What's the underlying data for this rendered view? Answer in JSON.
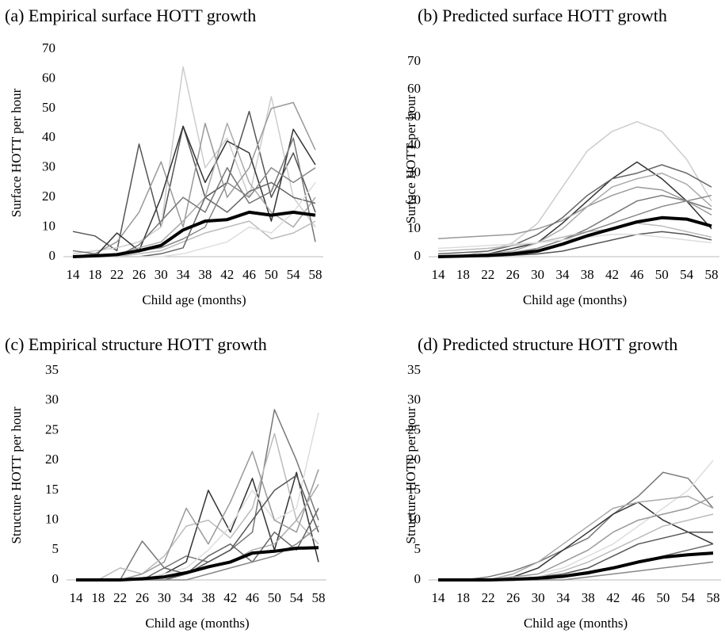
{
  "chart_data": [
    {
      "type": "line",
      "title": "(a) Empirical  surface HOTT growth",
      "x_label": "Child age (months)",
      "y_label": "Surface HOTT per hour",
      "categories": [
        "14",
        "18",
        "22",
        "26",
        "30",
        "34",
        "38",
        "42",
        "46",
        "50",
        "54",
        "58"
      ],
      "ylim": [
        0,
        70
      ],
      "yticks": [
        0,
        10,
        20,
        30,
        40,
        50,
        60,
        70
      ],
      "series": [
        {
          "color": "#555555",
          "values": [
            8.5,
            7,
            2,
            38,
            10,
            44,
            20,
            25,
            49,
            20,
            35,
            15
          ]
        },
        {
          "color": "#cccccc",
          "values": [
            1,
            2,
            3,
            5,
            10,
            64,
            30,
            40,
            20,
            54,
            20,
            10
          ]
        },
        {
          "color": "#999999",
          "values": [
            0,
            1,
            5,
            15,
            32,
            10,
            45,
            20,
            30,
            50,
            52,
            36
          ]
        },
        {
          "color": "#333333",
          "values": [
            0,
            0,
            8,
            2,
            20,
            44,
            25,
            39,
            35,
            12,
            43,
            31
          ]
        },
        {
          "color": "#aaaaaa",
          "values": [
            0,
            0,
            1,
            3,
            5,
            12,
            20,
            45,
            25,
            15,
            10,
            20
          ]
        },
        {
          "color": "#777777",
          "values": [
            2,
            1,
            0,
            4,
            12,
            20,
            15,
            30,
            18,
            22,
            40,
            5
          ]
        },
        {
          "color": "#bbbbbb",
          "values": [
            0,
            0,
            0,
            1,
            2,
            5,
            8,
            10,
            12,
            6,
            8,
            12
          ]
        },
        {
          "color": "#666666",
          "values": [
            0,
            0,
            0,
            0,
            1,
            3,
            20,
            15,
            22,
            25,
            20,
            18
          ]
        },
        {
          "color": "#dddddd",
          "values": [
            0,
            0,
            0,
            0,
            0,
            1,
            3,
            5,
            10,
            8,
            15,
            25
          ]
        },
        {
          "color": "#888888",
          "values": [
            0,
            0,
            1,
            2,
            3,
            6,
            10,
            25,
            20,
            30,
            25,
            30
          ]
        },
        {
          "color": "#000000",
          "line_width": 4,
          "values": [
            0,
            0.3,
            0.7,
            2,
            3.8,
            9,
            12,
            12.5,
            15,
            14,
            15,
            14
          ]
        }
      ]
    },
    {
      "type": "line",
      "title": "(b) Predicted surface HOTT growth",
      "x_label": "Child age (months)",
      "y_label": "Surface HOTT per hour",
      "categories": [
        "14",
        "18",
        "22",
        "26",
        "30",
        "34",
        "38",
        "42",
        "46",
        "50",
        "54",
        "58"
      ],
      "ylim": [
        0,
        70
      ],
      "yticks": [
        0,
        10,
        20,
        30,
        40,
        50,
        60,
        70
      ],
      "series": [
        {
          "color": "#cccccc",
          "values": [
            0,
            0.5,
            2,
            5,
            12,
            25,
            38,
            45,
            48.5,
            45,
            35,
            20
          ]
        },
        {
          "color": "#333333",
          "values": [
            0,
            0.5,
            1,
            3,
            5,
            12,
            20,
            28,
            34,
            28,
            20,
            10
          ]
        },
        {
          "color": "#999999",
          "values": [
            6.5,
            7,
            7.5,
            8,
            10,
            13,
            18,
            22,
            25,
            24,
            20,
            15
          ]
        },
        {
          "color": "#666666",
          "values": [
            1,
            1.5,
            2,
            4,
            8,
            14,
            22,
            28,
            30,
            33,
            30,
            25
          ]
        },
        {
          "color": "#aaaaaa",
          "values": [
            0,
            0.5,
            1,
            2,
            5,
            10,
            18,
            25,
            28,
            30,
            26,
            18
          ]
        },
        {
          "color": "#777777",
          "values": [
            0,
            0,
            0.5,
            1,
            3,
            6,
            10,
            15,
            20,
            22,
            20,
            17
          ]
        },
        {
          "color": "#bbbbbb",
          "values": [
            2,
            2.5,
            3,
            4,
            5,
            7,
            9,
            10,
            12,
            11,
            9,
            7
          ]
        },
        {
          "color": "#555555",
          "values": [
            0,
            0,
            0,
            0.5,
            1,
            2,
            4,
            6,
            8,
            9,
            8,
            6
          ]
        },
        {
          "color": "#888888",
          "values": [
            0,
            0,
            0.5,
            1.5,
            3,
            6,
            9,
            12,
            15,
            18,
            20,
            22
          ]
        },
        {
          "color": "#dddddd",
          "values": [
            3,
            3.5,
            4,
            4.5,
            5,
            6,
            7,
            8,
            8,
            7,
            6,
            5
          ]
        },
        {
          "color": "#000000",
          "line_width": 4,
          "values": [
            0,
            0.2,
            0.5,
            1,
            2,
            4.5,
            7.5,
            10,
            12.5,
            14,
            13.5,
            11
          ]
        }
      ]
    },
    {
      "type": "line",
      "title": "(c) Empirical  structure HOTT growth",
      "x_label": "Child age (months)",
      "y_label": "Structure  HOTT per hour",
      "categories": [
        "14",
        "18",
        "22",
        "26",
        "30",
        "34",
        "38",
        "42",
        "46",
        "50",
        "54",
        "58"
      ],
      "ylim": [
        0,
        35
      ],
      "yticks": [
        0,
        5,
        10,
        15,
        20,
        25,
        30,
        35
      ],
      "series": [
        {
          "color": "#777777",
          "values": [
            0,
            0,
            0,
            6.5,
            2,
            4,
            3,
            5,
            8,
            28.5,
            20,
            10
          ]
        },
        {
          "color": "#333333",
          "values": [
            0,
            0,
            0,
            0,
            1,
            3,
            15,
            8,
            17,
            5,
            18,
            3
          ]
        },
        {
          "color": "#bbbbbb",
          "values": [
            0,
            0,
            2,
            1,
            4,
            9,
            10,
            7,
            12,
            24.5,
            10,
            6
          ]
        },
        {
          "color": "#dddddd",
          "values": [
            0,
            0,
            0,
            0,
            1,
            2,
            5,
            9,
            15,
            10,
            12,
            28
          ]
        },
        {
          "color": "#999999",
          "values": [
            0,
            0,
            0,
            1,
            3,
            12,
            6,
            13,
            21.5,
            10,
            8,
            18.5
          ]
        },
        {
          "color": "#555555",
          "values": [
            0,
            0,
            0,
            0,
            0,
            1,
            3,
            5,
            10,
            15,
            17.5,
            8
          ]
        },
        {
          "color": "#aaaaaa",
          "values": [
            0,
            0,
            0,
            0,
            0.5,
            1,
            2,
            3,
            5,
            6,
            10,
            16
          ]
        },
        {
          "color": "#666666",
          "values": [
            0,
            0,
            0,
            0,
            2,
            1,
            4,
            6,
            3,
            8,
            5,
            12
          ]
        },
        {
          "color": "#888888",
          "values": [
            0,
            0,
            0,
            0,
            0,
            0,
            1,
            2,
            3,
            4,
            6,
            9
          ]
        },
        {
          "color": "#000000",
          "line_width": 4,
          "values": [
            0,
            0,
            0,
            0.2,
            0.5,
            1.2,
            2.2,
            3,
            4.5,
            4.8,
            5.3,
            5.4
          ]
        }
      ]
    },
    {
      "type": "line",
      "title": "(d) Predicted structure HOTT growth",
      "x_label": "Child age (months)",
      "y_label": "Structure HOTT per hour",
      "categories": [
        "14",
        "18",
        "22",
        "26",
        "30",
        "34",
        "38",
        "42",
        "46",
        "50",
        "54",
        "58"
      ],
      "ylim": [
        0,
        35
      ],
      "yticks": [
        0,
        5,
        10,
        15,
        20,
        25,
        30,
        35
      ],
      "series": [
        {
          "color": "#777777",
          "values": [
            0,
            0,
            0.5,
            1.5,
            3,
            5,
            7,
            11,
            14,
            18,
            17,
            12
          ]
        },
        {
          "color": "#333333",
          "values": [
            0,
            0,
            0,
            0.5,
            2,
            5,
            8,
            11,
            13,
            10,
            8,
            6
          ]
        },
        {
          "color": "#dddddd",
          "values": [
            0,
            0,
            0,
            0.5,
            1,
            2,
            4,
            6,
            9,
            12,
            15,
            20
          ]
        },
        {
          "color": "#aaaaaa",
          "values": [
            0,
            0,
            0,
            1,
            3,
            6,
            9,
            12,
            13,
            13.5,
            14,
            12
          ]
        },
        {
          "color": "#999999",
          "values": [
            0,
            0,
            0,
            0.5,
            1,
            3,
            5,
            8,
            10,
            11,
            12,
            14
          ]
        },
        {
          "color": "#555555",
          "values": [
            0,
            0,
            0,
            0,
            0.5,
            1,
            2,
            4,
            6,
            7,
            8,
            8
          ]
        },
        {
          "color": "#bbbbbb",
          "values": [
            0,
            0,
            0,
            0,
            0.5,
            1.5,
            3,
            5,
            7,
            9,
            10,
            11
          ]
        },
        {
          "color": "#666666",
          "values": [
            0,
            0,
            0,
            0,
            0,
            0.5,
            1,
            2,
            3,
            4,
            5,
            6
          ]
        },
        {
          "color": "#888888",
          "values": [
            0,
            0,
            0,
            0,
            0,
            0,
            0.5,
            1,
            1.5,
            2,
            2.5,
            3
          ]
        },
        {
          "color": "#000000",
          "line_width": 4,
          "values": [
            0,
            0,
            0,
            0.1,
            0.3,
            0.6,
            1.2,
            2,
            3,
            3.8,
            4.2,
            4.5
          ]
        }
      ]
    }
  ]
}
